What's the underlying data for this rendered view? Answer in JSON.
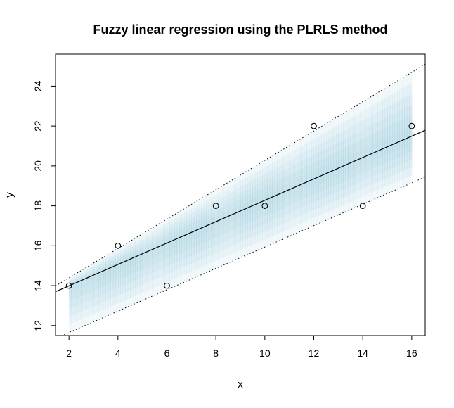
{
  "chart_data": {
    "type": "scatter",
    "title": "Fuzzy linear regression using the PLRLS method",
    "xlabel": "x",
    "ylabel": "y",
    "xlim": [
      1.45,
      16.55
    ],
    "ylim": [
      11.5,
      25.6
    ],
    "x_ticks": [
      2,
      4,
      6,
      8,
      10,
      12,
      14,
      16
    ],
    "y_ticks": [
      12,
      14,
      16,
      18,
      20,
      22,
      24
    ],
    "x_tick_labels": [
      "2",
      "4",
      "6",
      "8",
      "10",
      "12",
      "14",
      "16"
    ],
    "y_tick_labels": [
      "12",
      "14",
      "16",
      "18",
      "20",
      "22",
      "24"
    ],
    "grid": false,
    "legend": "none",
    "points": {
      "x": [
        2,
        4,
        6,
        8,
        10,
        12,
        14,
        16
      ],
      "y": [
        14,
        16,
        14,
        18,
        18,
        22,
        18,
        22
      ]
    },
    "center_line": {
      "intercept": 12.92,
      "slope": 0.5357
    },
    "upper_bound": {
      "intercept": 12.92,
      "slope": 0.7357
    },
    "lower_bound": {
      "intercept": 10.58,
      "slope": 0.5357
    },
    "band_x_range": [
      2,
      16
    ],
    "band_color": "#9fd3e3",
    "line_color": "#000000"
  }
}
